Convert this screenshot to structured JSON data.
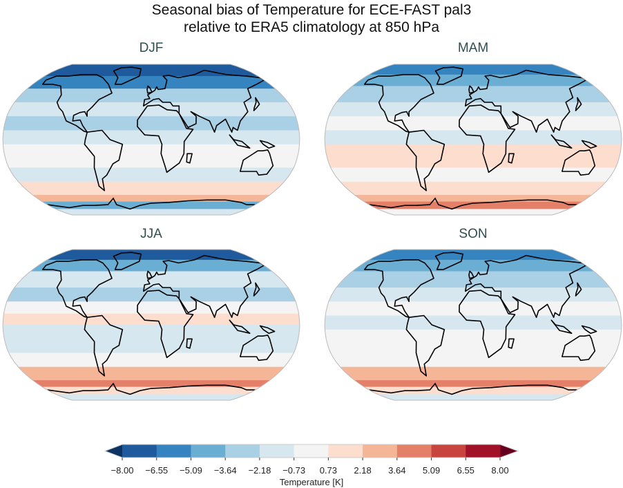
{
  "title": {
    "line1": "Seasonal bias of Temperature for ECE-FAST pal3",
    "line2": "relative to ERA5 climatology at 850 hPa"
  },
  "panels": [
    {
      "label": "DJF"
    },
    {
      "label": "MAM"
    },
    {
      "label": "JJA"
    },
    {
      "label": "SON"
    }
  ],
  "colorbar": {
    "label": "Temperature [K]",
    "ticks": [
      "−8.00",
      "−6.55",
      "−5.09",
      "−3.64",
      "−2.18",
      "−0.73",
      "0.73",
      "2.18",
      "3.64",
      "5.09",
      "6.55",
      "8.00"
    ],
    "colors": [
      "#1f5b9c",
      "#3584c0",
      "#6aaed3",
      "#a9d0e5",
      "#d6e7f0",
      "#f4f4f4",
      "#fcddce",
      "#f5b698",
      "#e47f68",
      "#c8453f",
      "#a11228"
    ],
    "under_color": "#0b3363",
    "over_color": "#67001f"
  }
}
